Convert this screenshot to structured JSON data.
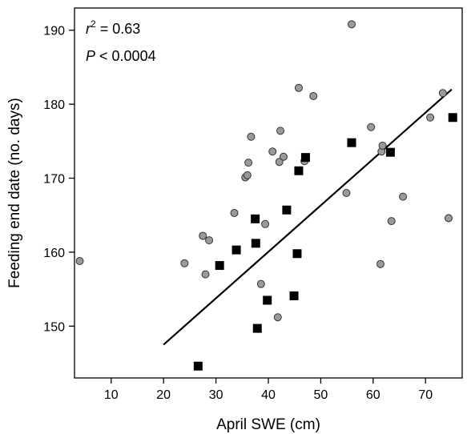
{
  "chart_data": {
    "type": "scatter",
    "xlabel": "April SWE (cm)",
    "ylabel": "Feeding end date (no. days)",
    "xlim": [
      3,
      77
    ],
    "ylim": [
      143,
      193
    ],
    "xticks": [
      10,
      20,
      30,
      40,
      50,
      60,
      70
    ],
    "yticks": [
      150,
      160,
      170,
      180,
      190
    ],
    "grid": false,
    "colors": {
      "circle_fill": "#9a9a9a",
      "square_fill": "#000000",
      "line": "#000000"
    },
    "annotations": [
      {
        "r2_symbol": "r",
        "r2_superscript": "2",
        "r2_rest": " = 0.63"
      },
      {
        "p_symbol": "P",
        "p_rest": " < 0.0004"
      }
    ],
    "series": [
      {
        "marker": "circle",
        "points": [
          [
            4,
            158.8
          ],
          [
            24,
            158.5
          ],
          [
            27.5,
            162.2
          ],
          [
            28,
            157
          ],
          [
            28.7,
            161.6
          ],
          [
            33.5,
            165.3
          ],
          [
            35.6,
            170.1
          ],
          [
            36,
            170.4
          ],
          [
            36.2,
            172.1
          ],
          [
            36.7,
            175.6
          ],
          [
            38.6,
            155.7
          ],
          [
            39.4,
            163.8
          ],
          [
            40.8,
            173.6
          ],
          [
            41.8,
            151.2
          ],
          [
            42.1,
            172.2
          ],
          [
            42.3,
            176.4
          ],
          [
            42.9,
            172.9
          ],
          [
            45.8,
            182.2
          ],
          [
            46.9,
            172.3
          ],
          [
            48.6,
            181.1
          ],
          [
            54.9,
            168
          ],
          [
            55.9,
            190.8
          ],
          [
            59.6,
            176.9
          ],
          [
            61.4,
            158.4
          ],
          [
            61.6,
            173.6
          ],
          [
            61.8,
            174.4
          ],
          [
            63.5,
            164.2
          ],
          [
            65.7,
            167.5
          ],
          [
            70.9,
            178.2
          ],
          [
            73.3,
            181.5
          ],
          [
            74.4,
            164.6
          ]
        ]
      },
      {
        "marker": "square",
        "points": [
          [
            26.6,
            144.6
          ],
          [
            30.7,
            158.2
          ],
          [
            33.9,
            160.3
          ],
          [
            37.5,
            164.5
          ],
          [
            37.6,
            161.2
          ],
          [
            37.9,
            149.7
          ],
          [
            39.8,
            153.5
          ],
          [
            43.5,
            165.7
          ],
          [
            44.9,
            154.1
          ],
          [
            45.5,
            159.8
          ],
          [
            45.8,
            171
          ],
          [
            47.1,
            172.8
          ],
          [
            55.9,
            174.8
          ],
          [
            63.3,
            173.5
          ],
          [
            75.2,
            178.2
          ]
        ]
      },
      {
        "marker": "line",
        "points": [
          [
            20,
            147.5
          ],
          [
            75,
            182
          ]
        ]
      }
    ]
  }
}
